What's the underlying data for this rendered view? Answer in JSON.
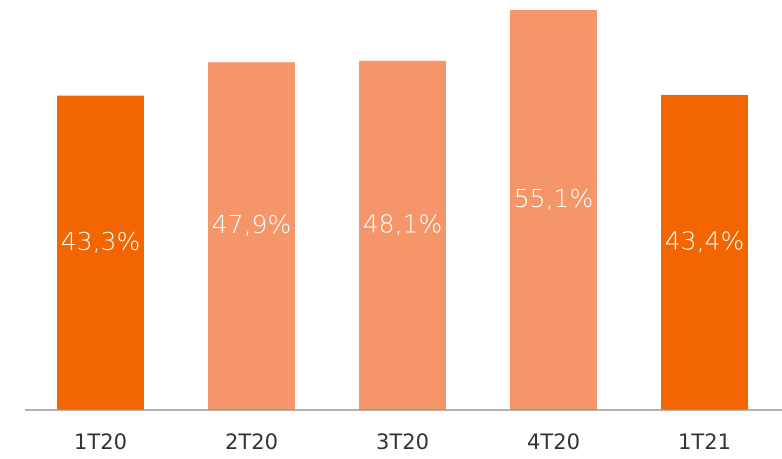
{
  "chart_data": {
    "type": "bar",
    "categories": [
      "1T20",
      "2T20",
      "3T20",
      "4T20",
      "1T21"
    ],
    "values": [
      43.3,
      47.9,
      48.1,
      55.1,
      43.4
    ],
    "value_labels": [
      "43,3%",
      "47,9%",
      "48,1%",
      "55,1%",
      "43,4%"
    ],
    "colors": [
      "#f26500",
      "#f4956a",
      "#f4956a",
      "#f4956a",
      "#f26500"
    ]
  }
}
